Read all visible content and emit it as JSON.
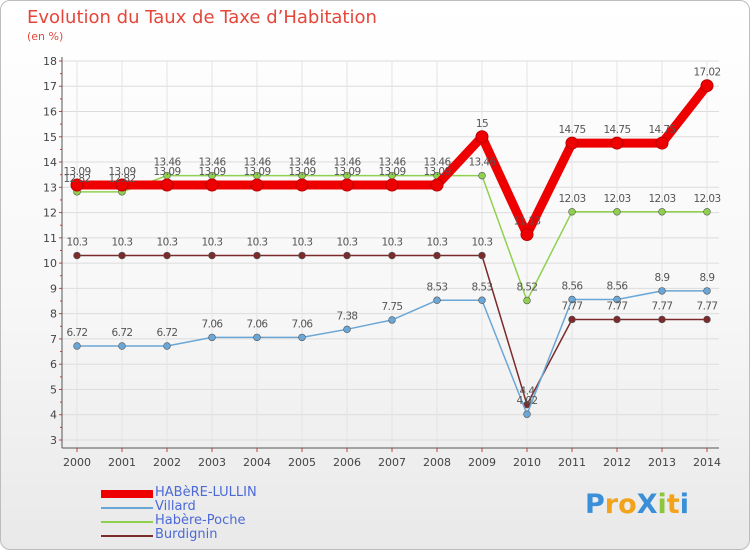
{
  "chart_data": {
    "type": "line",
    "title": "Evolution du Taux de Taxe d’Habitation",
    "ylabel": "(en %)",
    "xlabel": "",
    "ylim": [
      3,
      18
    ],
    "yticks": [
      "3",
      "4",
      "5",
      "6",
      "7",
      "8",
      "9",
      "10",
      "11",
      "12",
      "13",
      "14",
      "15",
      "16",
      "17",
      "18"
    ],
    "categories": [
      "2000",
      "2001",
      "2002",
      "2003",
      "2004",
      "2005",
      "2006",
      "2007",
      "2008",
      "2009",
      "2010",
      "2011",
      "2012",
      "2013",
      "2014"
    ],
    "series": [
      {
        "name": "HABèRE-LULLIN",
        "color": "#ee0000",
        "values": [
          13.09,
          13.09,
          13.09,
          13.09,
          13.09,
          13.09,
          13.09,
          13.09,
          13.09,
          15,
          11.13,
          14.75,
          14.75,
          14.75,
          17.02
        ],
        "labels": [
          "13.09",
          "13.09",
          "13.09",
          "13.09",
          "13.09",
          "13.09",
          "13.09",
          "13.09",
          "13.09",
          "15",
          "11.13",
          "14.75",
          "14.75",
          "14.75",
          "17.02"
        ]
      },
      {
        "name": "Villard",
        "color": "#6aa6d6",
        "values": [
          6.72,
          6.72,
          6.72,
          7.06,
          7.06,
          7.06,
          7.38,
          7.75,
          8.53,
          8.53,
          4.02,
          8.56,
          8.56,
          8.9,
          8.9
        ],
        "labels": [
          "6.72",
          "6.72",
          "6.72",
          "7.06",
          "7.06",
          "7.06",
          "7.38",
          "7.75",
          "8.53",
          "8.53",
          "4.02",
          "8.56",
          "8.56",
          "8.9",
          "8.9"
        ]
      },
      {
        "name": "Habère-Poche",
        "color": "#8fd14f",
        "values": [
          12.82,
          12.82,
          13.46,
          13.46,
          13.46,
          13.46,
          13.46,
          13.46,
          13.46,
          13.46,
          8.52,
          12.03,
          12.03,
          12.03,
          12.03
        ],
        "labels": [
          "12.82",
          "12.82",
          "13.46",
          "13.46",
          "13.46",
          "13.46",
          "13.46",
          "13.46",
          "13.46",
          "13.46",
          "8.52",
          "12.03",
          "12.03",
          "12.03",
          "12.03"
        ]
      },
      {
        "name": "Burdignin",
        "color": "#7b2b2b",
        "values": [
          10.3,
          10.3,
          10.3,
          10.3,
          10.3,
          10.3,
          10.3,
          10.3,
          10.3,
          10.3,
          4.4,
          7.77,
          7.77,
          7.77,
          7.77
        ],
        "labels": [
          "10.3",
          "10.3",
          "10.3",
          "10.3",
          "10.3",
          "10.3",
          "10.3",
          "10.3",
          "10.3",
          "10.3",
          "4.4",
          "7.77",
          "7.77",
          "7.77",
          "7.77"
        ]
      }
    ]
  },
  "legend": {
    "items": [
      "HABèRE-LULLIN",
      "Villard",
      "Habère-Poche",
      "Burdignin"
    ]
  },
  "brand": {
    "text": "ProXiti",
    "letters": [
      "P",
      "r",
      "o",
      "X",
      "i",
      "t",
      "i"
    ],
    "colors": [
      "#3a8fd8",
      "#f2a31b",
      "#f2a31b",
      "#3a8fd8",
      "#8cc63f",
      "#f2a31b",
      "#3a8fd8"
    ]
  }
}
